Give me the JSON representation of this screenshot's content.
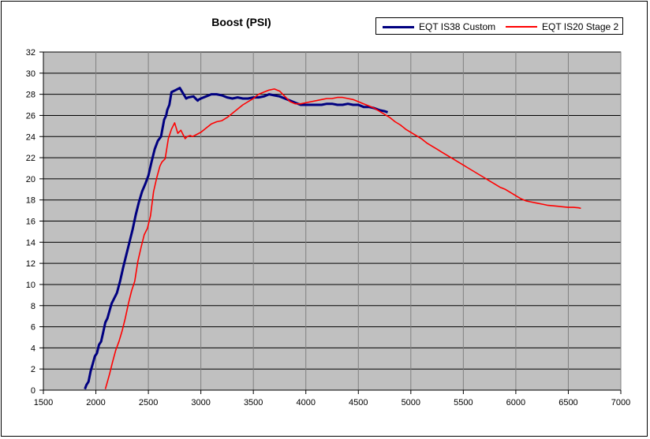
{
  "chart_data": {
    "type": "line",
    "title": "Boost (PSI)",
    "xlabel": "",
    "ylabel": "",
    "xlim": [
      1500,
      7000
    ],
    "ylim": [
      0,
      32
    ],
    "xticks": [
      1500,
      2000,
      2500,
      3000,
      3500,
      4000,
      4500,
      5000,
      5500,
      6000,
      6500,
      7000
    ],
    "yticks": [
      0,
      2,
      4,
      6,
      8,
      10,
      12,
      14,
      16,
      18,
      20,
      22,
      24,
      26,
      28,
      30,
      32
    ],
    "grid": true,
    "legend": "top-right",
    "plot_background": "#C0C0C0",
    "series": [
      {
        "name": "EQT IS38 Custom",
        "color": "#000080",
        "x": [
          1895,
          1910,
          1930,
          1950,
          1970,
          1990,
          2010,
          2030,
          2050,
          2070,
          2090,
          2110,
          2130,
          2150,
          2170,
          2200,
          2230,
          2260,
          2290,
          2320,
          2350,
          2380,
          2410,
          2440,
          2470,
          2500,
          2530,
          2560,
          2590,
          2620,
          2650,
          2670,
          2680,
          2700,
          2720,
          2760,
          2800,
          2860,
          2880,
          2930,
          2970,
          2980,
          3000,
          3050,
          3100,
          3150,
          3200,
          3250,
          3300,
          3350,
          3400,
          3450,
          3500,
          3550,
          3600,
          3650,
          3700,
          3750,
          3800,
          3850,
          3900,
          3950,
          4000,
          4050,
          4100,
          4150,
          4200,
          4250,
          4300,
          4350,
          4400,
          4450,
          4500,
          4550,
          4600,
          4650,
          4700,
          4750,
          4780
        ],
        "y": [
          0.1,
          0.5,
          0.8,
          1.8,
          2.5,
          3.2,
          3.5,
          4.3,
          4.6,
          5.5,
          6.4,
          6.8,
          7.5,
          8.2,
          8.6,
          9.2,
          10.3,
          11.6,
          12.8,
          14.0,
          15.2,
          16.6,
          17.8,
          18.8,
          19.5,
          20.3,
          21.6,
          22.8,
          23.6,
          24.0,
          25.6,
          26.0,
          26.5,
          27.0,
          28.2,
          28.4,
          28.6,
          27.6,
          27.7,
          27.8,
          27.4,
          27.5,
          27.6,
          27.8,
          28.0,
          28.0,
          27.9,
          27.7,
          27.6,
          27.7,
          27.6,
          27.6,
          27.7,
          27.7,
          27.8,
          28.0,
          27.9,
          27.8,
          27.6,
          27.4,
          27.2,
          27.0,
          27.0,
          27.0,
          27.0,
          27.0,
          27.1,
          27.1,
          27.0,
          27.0,
          27.1,
          27.0,
          27.0,
          26.8,
          26.8,
          26.7,
          26.5,
          26.4,
          26.3
        ]
      },
      {
        "name": "EQT IS20 Stage 2",
        "color": "#FF0000",
        "x": [
          2090,
          2110,
          2130,
          2160,
          2190,
          2220,
          2250,
          2280,
          2310,
          2340,
          2370,
          2400,
          2430,
          2460,
          2490,
          2520,
          2550,
          2580,
          2610,
          2630,
          2660,
          2690,
          2720,
          2750,
          2780,
          2810,
          2830,
          2850,
          2870,
          2900,
          2920,
          2960,
          3000,
          3050,
          3100,
          3150,
          3200,
          3250,
          3300,
          3350,
          3400,
          3450,
          3500,
          3550,
          3600,
          3650,
          3700,
          3750,
          3800,
          3850,
          3900,
          3950,
          4000,
          4050,
          4100,
          4150,
          4200,
          4250,
          4300,
          4350,
          4400,
          4450,
          4500,
          4550,
          4600,
          4650,
          4700,
          4750,
          4800,
          4850,
          4900,
          4950,
          5000,
          5050,
          5100,
          5150,
          5200,
          5250,
          5300,
          5350,
          5400,
          5450,
          5500,
          5550,
          5600,
          5650,
          5700,
          5750,
          5800,
          5850,
          5900,
          5950,
          6000,
          6050,
          6100,
          6150,
          6200,
          6250,
          6300,
          6350,
          6400,
          6450,
          6500,
          6550,
          6600,
          6620
        ],
        "y": [
          0.1,
          0.8,
          1.5,
          2.7,
          3.8,
          4.6,
          5.6,
          6.8,
          8.2,
          9.4,
          10.3,
          12.2,
          13.5,
          14.7,
          15.3,
          16.5,
          18.8,
          20.1,
          21.2,
          21.6,
          21.9,
          23.8,
          24.7,
          25.3,
          24.3,
          24.6,
          24.2,
          23.8,
          24.0,
          24.1,
          24.0,
          24.2,
          24.4,
          24.8,
          25.2,
          25.4,
          25.5,
          25.8,
          26.2,
          26.6,
          27.0,
          27.3,
          27.6,
          28.0,
          28.2,
          28.4,
          28.5,
          28.3,
          27.8,
          27.3,
          27.1,
          27.1,
          27.2,
          27.3,
          27.4,
          27.5,
          27.6,
          27.6,
          27.7,
          27.7,
          27.6,
          27.5,
          27.3,
          27.1,
          26.9,
          26.7,
          26.4,
          26.1,
          25.8,
          25.4,
          25.1,
          24.7,
          24.4,
          24.1,
          23.8,
          23.4,
          23.1,
          22.8,
          22.5,
          22.2,
          21.9,
          21.6,
          21.3,
          21.0,
          20.7,
          20.4,
          20.1,
          19.8,
          19.5,
          19.2,
          19.0,
          18.7,
          18.4,
          18.1,
          17.9,
          17.8,
          17.7,
          17.6,
          17.5,
          17.45,
          17.4,
          17.35,
          17.3,
          17.3,
          17.25,
          17.2
        ]
      }
    ]
  }
}
